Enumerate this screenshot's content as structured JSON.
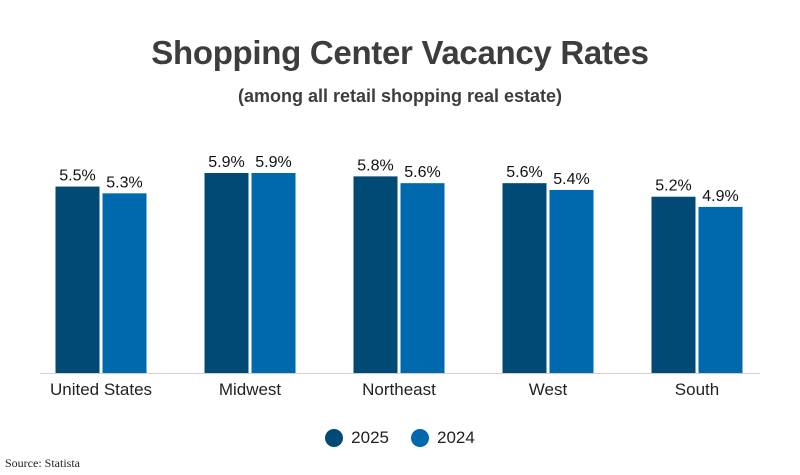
{
  "chart_data": {
    "type": "bar",
    "title": "Shopping Center Vacancy Rates",
    "subtitle": "(among all retail shopping real estate)",
    "xlabel": "",
    "ylabel": "",
    "categories": [
      "United States",
      "Midwest",
      "Northeast",
      "West",
      "South"
    ],
    "series": [
      {
        "name": "2025",
        "values": [
          5.5,
          5.9,
          5.8,
          5.6,
          5.2
        ],
        "labels": [
          "5.5%",
          "5.9%",
          "5.8%",
          "5.6%",
          "5.2%"
        ],
        "color": "#004a75"
      },
      {
        "name": "2024",
        "values": [
          5.3,
          5.9,
          5.6,
          5.4,
          4.9
        ],
        "labels": [
          "5.3%",
          "5.9%",
          "5.6%",
          "5.4%",
          "4.9%"
        ],
        "color": "#0068ad"
      }
    ],
    "ylim": [
      0,
      5.9
    ],
    "grid": false,
    "legend_position": "bottom-center"
  },
  "source": "Source: Statista"
}
